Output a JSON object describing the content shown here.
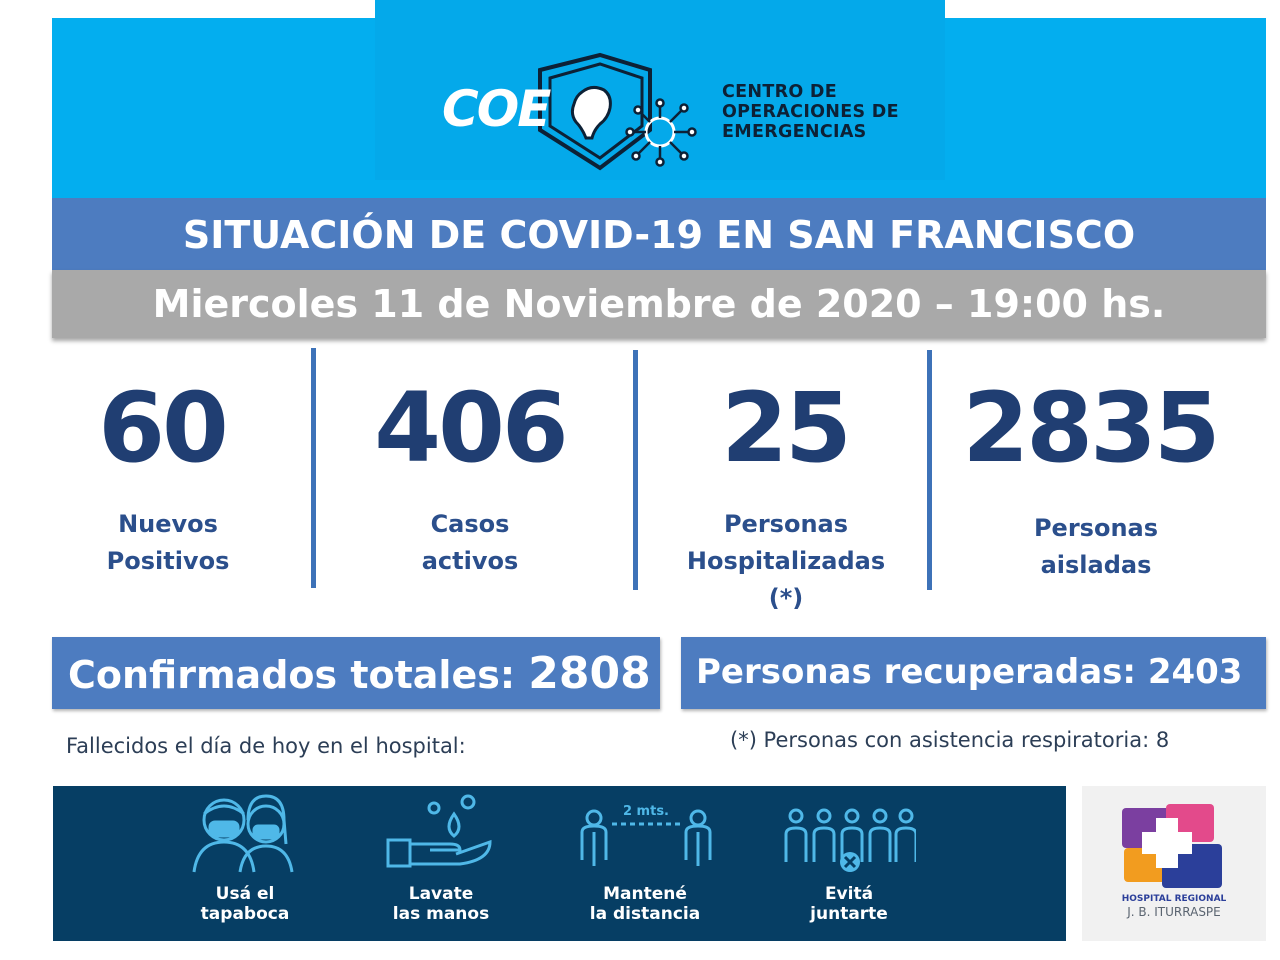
{
  "header": {
    "logo_text": "COE",
    "org_name_lines": [
      "CENTRO DE",
      "OPERACIONES DE",
      "EMERGENCIAS"
    ]
  },
  "title": "SITUACIÓN DE COVID-19 EN SAN FRANCISCO",
  "date": "Miercoles 11 de Noviembre de 2020 – 19:00 hs.",
  "stats": [
    {
      "value": "60",
      "label_lines": [
        "Nuevos",
        "Positivos"
      ]
    },
    {
      "value": "406",
      "label_lines": [
        "Casos",
        "activos"
      ]
    },
    {
      "value": "25",
      "label_lines": [
        "Personas",
        "Hospitalizadas",
        "(*)"
      ]
    },
    {
      "value": "2835",
      "label_lines": [
        "Personas",
        "aisladas"
      ]
    }
  ],
  "totals": {
    "confirmed_label": "Confirmados totales:",
    "confirmed_value": "2808",
    "recovered_label": "Personas recuperadas:",
    "recovered_value": "2403"
  },
  "notes": {
    "deaths": "Fallecidos el día de hoy en el hospital:",
    "respiratory": "(*) Personas con asistencia respiratoria: 8"
  },
  "prevention": [
    {
      "icon": "face-mask-icon",
      "label_lines": [
        "Usá el",
        "tapaboca"
      ]
    },
    {
      "icon": "hand-wash-icon",
      "label_lines": [
        "Lavate",
        "las manos"
      ]
    },
    {
      "icon": "distance-icon",
      "distance_text": "2 mts.",
      "label_lines": [
        "Mantené",
        "la distancia"
      ]
    },
    {
      "icon": "no-gathering-icon",
      "label_lines": [
        "Evitá",
        "juntarte"
      ]
    }
  ],
  "hospital": {
    "logo_icon": "hospital-cross-icon",
    "name_lines": [
      "HOSPITAL REGIONAL",
      "J. B. ITURRASPE"
    ]
  },
  "colors": {
    "header_bg": "#03AEEF",
    "title_band": "#4D7CC0",
    "date_band": "#A9A9A9",
    "stat_number": "#203E72",
    "banner_bg": "#063E64"
  }
}
